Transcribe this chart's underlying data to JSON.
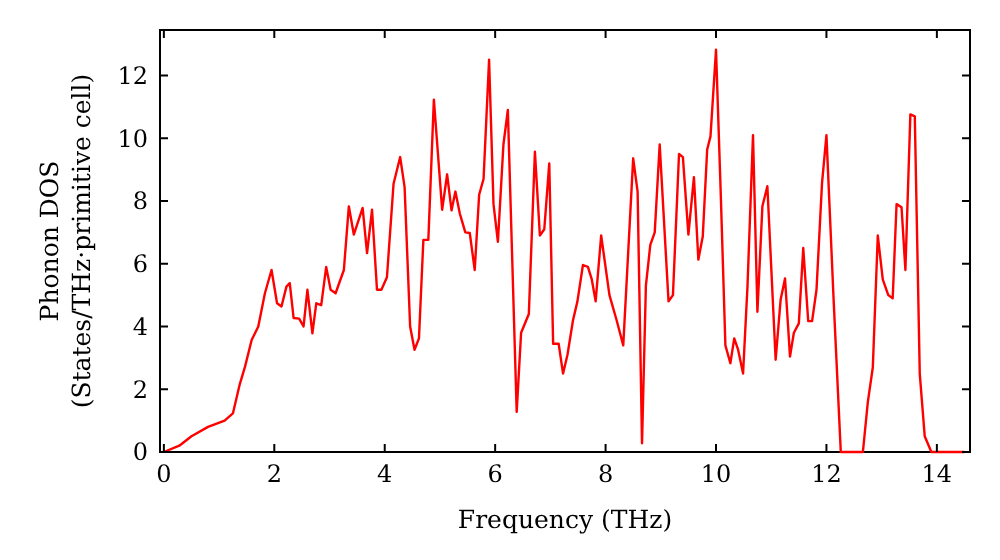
{
  "chart_data": {
    "type": "line",
    "xlabel": "Frequency (THz)",
    "ylabel": "Phonon DOS\n(States/THz·primitive cell)",
    "xlim": [
      -0.07,
      14.6
    ],
    "ylim": [
      0,
      13.45
    ],
    "xticks": [
      0,
      2,
      4,
      6,
      8,
      10,
      12,
      14
    ],
    "yticks": [
      0,
      2,
      4,
      6,
      8,
      10,
      12
    ],
    "grid": false,
    "marker": "none",
    "line_style": "solid",
    "series": [
      {
        "color": "#ff0000",
        "x": [
          0,
          0.28,
          0.5,
          0.8,
          1.1,
          1.25,
          1.37,
          1.47,
          1.59,
          1.71,
          1.83,
          1.95,
          2.05,
          2.13,
          2.22,
          2.28,
          2.35,
          2.45,
          2.53,
          2.6,
          2.69,
          2.76,
          2.85,
          2.94,
          3.02,
          3.11,
          3.26,
          3.35,
          3.44,
          3.6,
          3.68,
          3.77,
          3.86,
          3.94,
          4.04,
          4.16,
          4.28,
          4.36,
          4.46,
          4.54,
          4.62,
          4.7,
          4.79,
          4.89,
          5.04,
          5.13,
          5.21,
          5.28,
          5.36,
          5.46,
          5.54,
          5.63,
          5.71,
          5.79,
          5.89,
          5.97,
          6.05,
          6.15,
          6.23,
          6.39,
          6.47,
          6.61,
          6.72,
          6.81,
          6.89,
          6.98,
          7.05,
          7.15,
          7.23,
          7.31,
          7.41,
          7.49,
          7.59,
          7.68,
          7.75,
          7.82,
          7.92,
          8.07,
          8.2,
          8.32,
          8.5,
          8.58,
          8.66,
          8.73,
          8.81,
          8.89,
          8.98,
          9.14,
          9.22,
          9.33,
          9.4,
          9.5,
          9.6,
          9.68,
          9.76,
          9.84,
          9.9,
          10.0,
          10.09,
          10.17,
          10.26,
          10.33,
          10.4,
          10.49,
          10.57,
          10.67,
          10.75,
          10.84,
          10.93,
          11.08,
          11.17,
          11.25,
          11.34,
          11.41,
          11.5,
          11.58,
          11.67,
          11.74,
          11.82,
          11.92,
          12.0,
          12.13,
          12.26,
          12.66,
          12.75,
          12.84,
          12.93,
          13.02,
          13.12,
          13.2,
          13.27,
          13.36,
          13.43,
          13.52,
          13.6,
          13.69,
          13.78,
          13.9,
          14.5
        ],
        "values": [
          0,
          0.2,
          0.5,
          0.8,
          1.0,
          1.23,
          2.13,
          2.72,
          3.57,
          4.0,
          5.06,
          5.8,
          4.74,
          4.64,
          5.27,
          5.38,
          4.27,
          4.25,
          4.0,
          5.17,
          3.78,
          4.74,
          4.68,
          5.9,
          5.17,
          5.06,
          5.8,
          7.83,
          6.93,
          7.78,
          6.34,
          7.72,
          5.17,
          5.17,
          5.57,
          8.55,
          9.4,
          8.44,
          4.0,
          3.26,
          3.62,
          6.76,
          6.76,
          11.23,
          7.72,
          8.85,
          7.7,
          8.3,
          7.6,
          7.0,
          6.98,
          5.8,
          8.2,
          8.7,
          12.5,
          7.9,
          6.7,
          9.8,
          10.9,
          1.28,
          3.8,
          4.4,
          9.57,
          6.9,
          7.1,
          9.2,
          3.45,
          3.45,
          2.5,
          3.1,
          4.2,
          4.8,
          5.96,
          5.9,
          5.5,
          4.8,
          6.9,
          5.0,
          4.2,
          3.4,
          9.36,
          8.3,
          0.28,
          5.3,
          6.6,
          7.0,
          9.8,
          4.8,
          5.0,
          9.5,
          9.4,
          6.93,
          8.76,
          6.13,
          6.87,
          9.64,
          10.06,
          12.82,
          8.0,
          3.4,
          2.83,
          3.62,
          3.26,
          2.5,
          5.28,
          10.1,
          4.47,
          7.83,
          8.47,
          2.94,
          4.85,
          5.53,
          3.04,
          3.8,
          4.1,
          6.5,
          4.17,
          4.17,
          5.17,
          8.57,
          10.1,
          4.85,
          0,
          0,
          1.6,
          2.7,
          6.9,
          5.5,
          5.0,
          4.9,
          7.9,
          7.8,
          5.8,
          10.76,
          10.7,
          2.5,
          0.5,
          0,
          0
        ]
      }
    ]
  }
}
